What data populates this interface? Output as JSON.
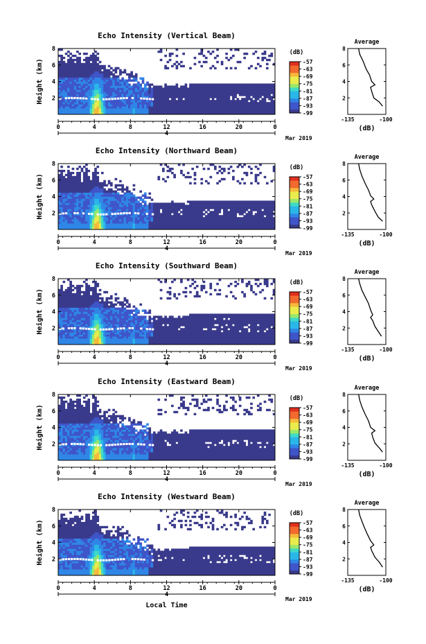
{
  "colors": {
    "palette": [
      "#3a3a8c",
      "#3f55c9",
      "#2f86e6",
      "#2ab7e8",
      "#3fd9c8",
      "#9be86a",
      "#e9ec4c",
      "#f7b93a",
      "#f26a2e",
      "#e0301e"
    ],
    "intensity_high": "#e9ec4c",
    "band": "#ffffff",
    "profile_line": "#000000"
  },
  "chart_data": [
    {
      "type": "heatmap",
      "title": "Echo Intensity (Vertical Beam)",
      "ylabel": "Height (km)",
      "yticks": [
        "2",
        "4",
        "6",
        "8"
      ],
      "ylim": [
        0,
        8
      ],
      "xticks": [
        "0",
        "4",
        "8",
        "12",
        "16",
        "20",
        "0"
      ],
      "xlim": [
        0,
        24
      ],
      "date_tick": "4",
      "date_label": "Mar 2019",
      "colorbar_unit": "(dB)",
      "colorbar_ticks": [
        "-57",
        "-63",
        "-69",
        "-75",
        "-81",
        "-87",
        "-93",
        "-99"
      ],
      "clim": [
        -99,
        -57
      ],
      "shelf_top": 3.6,
      "inset": {
        "title": "Average",
        "xlabel": "(dB)",
        "xticks": [
          "-135",
          "-100"
        ],
        "xlim": [
          -135,
          -100
        ],
        "yticks": [
          "2",
          "4",
          "6",
          "8"
        ],
        "profile": [
          [
            -103,
            1.0
          ],
          [
            -106,
            1.5
          ],
          [
            -111,
            2.0
          ],
          [
            -113,
            2.8
          ],
          [
            -114,
            3.3
          ],
          [
            -110,
            3.6
          ],
          [
            -113,
            4.0
          ],
          [
            -115,
            4.8
          ],
          [
            -118,
            5.5
          ],
          [
            -121,
            6.5
          ],
          [
            -124,
            7.3
          ],
          [
            -125,
            8.0
          ]
        ]
      }
    },
    {
      "type": "heatmap",
      "title": "Echo Intensity (Northward Beam)",
      "ylabel": "Height (km)",
      "yticks": [
        "2",
        "4",
        "6",
        "8"
      ],
      "ylim": [
        0,
        8
      ],
      "xticks": [
        "0",
        "4",
        "8",
        "12",
        "16",
        "20",
        "0"
      ],
      "xlim": [
        0,
        24
      ],
      "date_tick": "4",
      "date_label": "Mar 2019",
      "colorbar_unit": "(dB)",
      "colorbar_ticks": [
        "-57",
        "-63",
        "-69",
        "-75",
        "-81",
        "-87",
        "-93",
        "-99"
      ],
      "clim": [
        -99,
        -57
      ],
      "shelf_top": 3.4,
      "inset": {
        "title": "Average",
        "xlabel": "(dB)",
        "xticks": [
          "-135",
          "-100"
        ],
        "xlim": [
          -135,
          -100
        ],
        "yticks": [
          "2",
          "4",
          "6",
          "8"
        ],
        "profile": [
          [
            -103,
            1.0
          ],
          [
            -107,
            1.5
          ],
          [
            -110,
            2.2
          ],
          [
            -113,
            3.0
          ],
          [
            -114,
            3.4
          ],
          [
            -111,
            3.7
          ],
          [
            -114,
            4.1
          ],
          [
            -116,
            4.8
          ],
          [
            -119,
            5.6
          ],
          [
            -122,
            6.5
          ],
          [
            -124,
            7.3
          ],
          [
            -125,
            8.0
          ]
        ]
      }
    },
    {
      "type": "heatmap",
      "title": "Echo Intensity (Southward Beam)",
      "ylabel": "Height (km)",
      "yticks": [
        "2",
        "4",
        "6",
        "8"
      ],
      "ylim": [
        0,
        8
      ],
      "xticks": [
        "0",
        "4",
        "8",
        "12",
        "16",
        "20",
        "0"
      ],
      "xlim": [
        0,
        24
      ],
      "date_tick": "4",
      "date_label": "Mar 2019",
      "colorbar_unit": "(dB)",
      "colorbar_ticks": [
        "-57",
        "-63",
        "-69",
        "-75",
        "-81",
        "-87",
        "-93",
        "-99"
      ],
      "clim": [
        -99,
        -57
      ],
      "shelf_top": 3.5,
      "inset": {
        "title": "Average",
        "xlabel": "(dB)",
        "xticks": [
          "-135",
          "-100"
        ],
        "xlim": [
          -135,
          -100
        ],
        "yticks": [
          "2",
          "4",
          "6",
          "8"
        ],
        "profile": [
          [
            -104,
            1.0
          ],
          [
            -107,
            1.6
          ],
          [
            -110,
            2.2
          ],
          [
            -112,
            2.9
          ],
          [
            -114,
            3.3
          ],
          [
            -112,
            3.6
          ],
          [
            -114,
            4.2
          ],
          [
            -116,
            5.0
          ],
          [
            -119,
            5.8
          ],
          [
            -122,
            6.6
          ],
          [
            -124,
            7.4
          ],
          [
            -125,
            8.0
          ]
        ]
      }
    },
    {
      "type": "heatmap",
      "title": "Echo Intensity (Eastward Beam)",
      "ylabel": "Height (km)",
      "yticks": [
        "2",
        "4",
        "6",
        "8"
      ],
      "ylim": [
        0,
        8
      ],
      "xticks": [
        "0",
        "4",
        "8",
        "12",
        "16",
        "20",
        "0"
      ],
      "xlim": [
        0,
        24
      ],
      "date_tick": "4",
      "date_label": "Mar 2019",
      "colorbar_unit": "(dB)",
      "colorbar_ticks": [
        "-57",
        "-63",
        "-69",
        "-75",
        "-81",
        "-87",
        "-93",
        "-99"
      ],
      "clim": [
        -99,
        -57
      ],
      "shelf_top": 3.6,
      "inset": {
        "title": "Average",
        "xlabel": "(dB)",
        "xticks": [
          "-135",
          "-100"
        ],
        "xlim": [
          -135,
          -100
        ],
        "yticks": [
          "2",
          "4",
          "6",
          "8"
        ],
        "profile": [
          [
            -103,
            1.0
          ],
          [
            -106,
            1.5
          ],
          [
            -110,
            2.1
          ],
          [
            -112,
            2.8
          ],
          [
            -113,
            3.3
          ],
          [
            -110,
            3.6
          ],
          [
            -114,
            4.0
          ],
          [
            -116,
            4.8
          ],
          [
            -119,
            5.6
          ],
          [
            -122,
            6.5
          ],
          [
            -124,
            7.3
          ],
          [
            -125,
            8.0
          ]
        ]
      }
    },
    {
      "type": "heatmap",
      "title": "Echo Intensity (Westward Beam)",
      "ylabel": "Height (km)",
      "yticks": [
        "2",
        "4",
        "6",
        "8"
      ],
      "ylim": [
        0,
        8
      ],
      "xticks": [
        "0",
        "4",
        "8",
        "12",
        "16",
        "20",
        "0"
      ],
      "xlim": [
        0,
        24
      ],
      "date_tick": "4",
      "date_label": "Mar 2019",
      "colorbar_unit": "(dB)",
      "colorbar_ticks": [
        "-57",
        "-63",
        "-69",
        "-75",
        "-81",
        "-87",
        "-93",
        "-99"
      ],
      "clim": [
        -99,
        -57
      ],
      "shelf_top": 3.3,
      "xlabel": "Local Time",
      "inset": {
        "title": "Average",
        "xlabel": "(dB)",
        "xticks": [
          "-135",
          "-100"
        ],
        "xlim": [
          -135,
          -100
        ],
        "yticks": [
          "2",
          "4",
          "6",
          "8"
        ],
        "profile": [
          [
            -103,
            1.0
          ],
          [
            -106,
            1.6
          ],
          [
            -110,
            2.2
          ],
          [
            -113,
            3.0
          ],
          [
            -114,
            3.4
          ],
          [
            -111,
            3.7
          ],
          [
            -114,
            4.2
          ],
          [
            -117,
            5.0
          ],
          [
            -120,
            5.9
          ],
          [
            -122,
            6.6
          ],
          [
            -124,
            7.3
          ],
          [
            -125,
            8.0
          ]
        ]
      }
    }
  ]
}
